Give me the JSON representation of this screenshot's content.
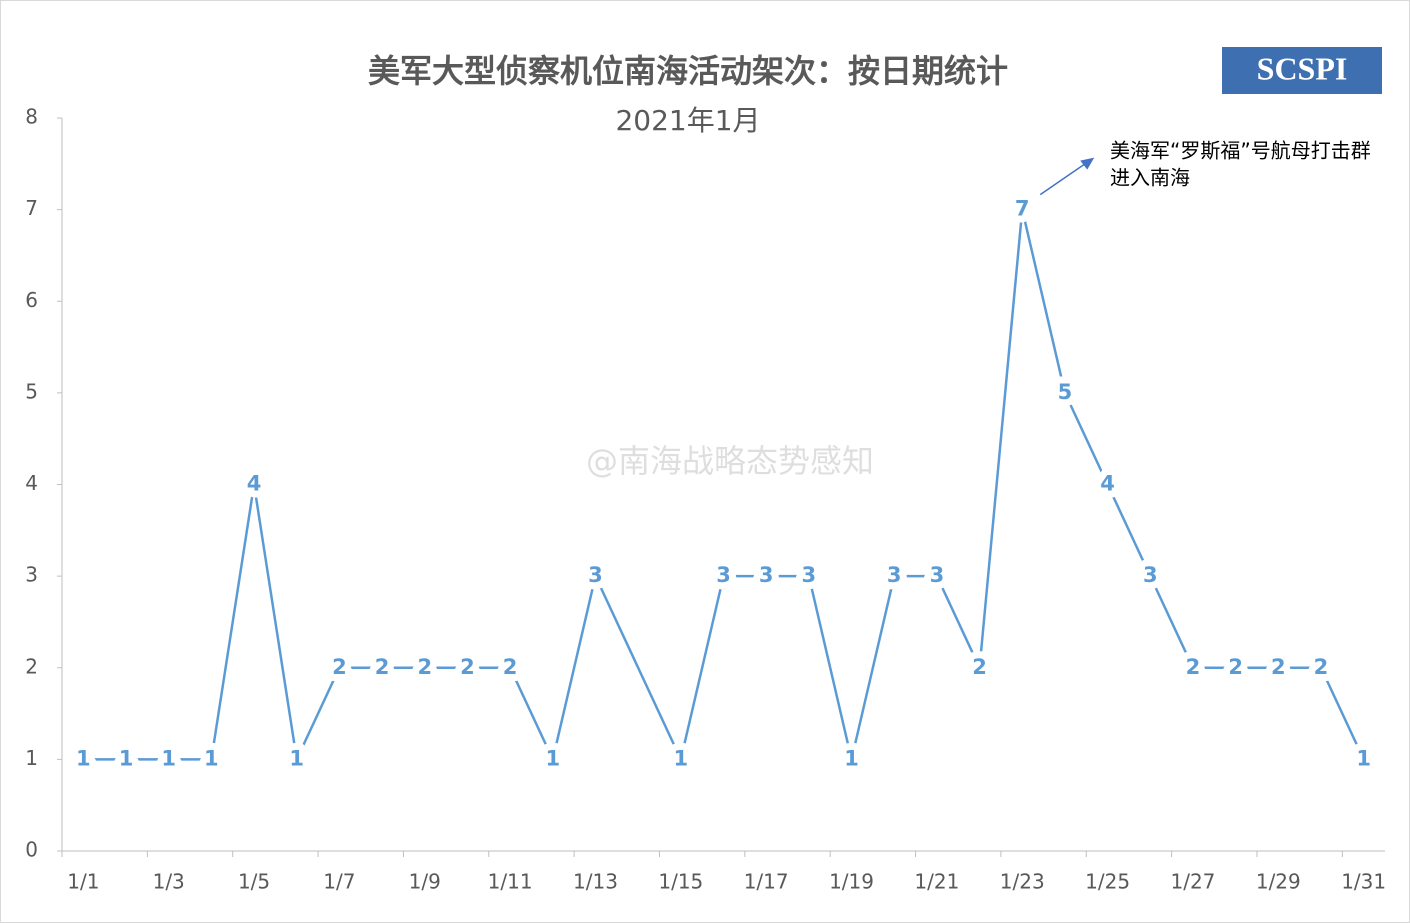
{
  "chart_data": {
    "type": "line",
    "title": "美军大型侦察机位南海活动架次：按日期统计",
    "subtitle": "2021年1月",
    "logo": "SCSPI",
    "watermark": "@南海战略态势感知",
    "annotation": [
      "美海军“罗斯福”号航母打击群",
      "进入南海"
    ],
    "annotation_index": 22,
    "categories": [
      "1/1",
      null,
      "1/3",
      null,
      "1/5",
      null,
      "1/7",
      null,
      "1/9",
      null,
      "1/11",
      null,
      "1/13",
      null,
      "1/15",
      null,
      "1/17",
      null,
      "1/19",
      null,
      "1/21",
      null,
      "1/23",
      null,
      "1/25",
      null,
      "1/27",
      null,
      "1/29",
      null,
      "1/31"
    ],
    "values": [
      1,
      1,
      1,
      1,
      4,
      1,
      2,
      2,
      2,
      2,
      2,
      1,
      3,
      2,
      1,
      3,
      3,
      3,
      1,
      3,
      3,
      2,
      7,
      5,
      4,
      3,
      2,
      2,
      2,
      2,
      1
    ],
    "value_labels": [
      "1",
      "1",
      "1",
      "1",
      "4",
      "1",
      "2",
      "2",
      "2",
      "2",
      "2",
      "1",
      "3",
      null,
      "1",
      "3",
      "3",
      "3",
      "1",
      "3",
      "3",
      "2",
      "7",
      "5",
      "4",
      "3",
      "2",
      "2",
      "2",
      "2",
      "1"
    ],
    "color": "#5b9bd5",
    "ylim": [
      0,
      8
    ],
    "yticks": [
      0,
      1,
      2,
      3,
      4,
      5,
      6,
      7,
      8
    ],
    "grid": false
  }
}
